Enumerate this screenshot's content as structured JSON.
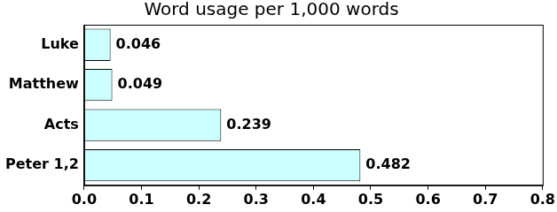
{
  "chart_data": {
    "type": "bar",
    "orientation": "horizontal",
    "title": "Word usage per 1,000 words",
    "categories": [
      "Luke",
      "Matthew",
      "Acts",
      "Peter 1,2"
    ],
    "values": [
      0.046,
      0.049,
      0.239,
      0.482
    ],
    "color": "#ccffff",
    "xlim": [
      0,
      0.8
    ],
    "xticks": [
      {
        "value": 0,
        "label": "0.0"
      },
      0.1,
      0.2,
      0.3,
      0.4,
      0.5,
      0.6,
      0.7,
      0.8
    ],
    "grid": false,
    "data_labels": true
  }
}
